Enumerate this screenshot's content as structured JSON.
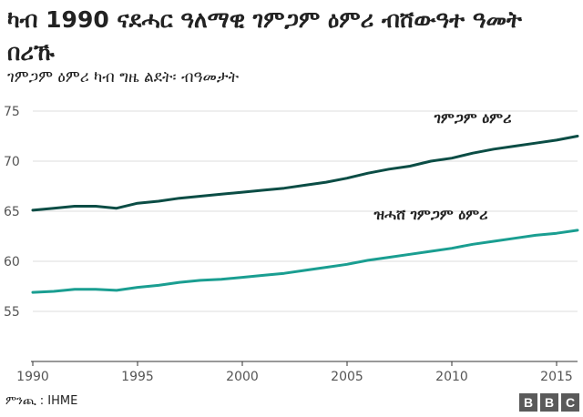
{
  "chart_data": {
    "type": "line",
    "title": "ካብ 1990 ናደሓር ዓለማዊ ገምጋም ዕምሪ ብሸውዓተ ዓመት በሪኹ",
    "subtitle": "ገምጋም ዕምሪ ካብ ግዜ ልደት፡ ብዓመታት",
    "x": [
      1990,
      1991,
      1992,
      1993,
      1994,
      1995,
      1996,
      1997,
      1998,
      1999,
      2000,
      2001,
      2002,
      2003,
      2004,
      2005,
      2006,
      2007,
      2008,
      2009,
      2010,
      2011,
      2012,
      2013,
      2014,
      2015,
      2016
    ],
    "xticks": [
      1990,
      1995,
      2000,
      2005,
      2010,
      2015
    ],
    "yticks": [
      55,
      60,
      65,
      70,
      75
    ],
    "xlim": [
      1990,
      2016
    ],
    "ylim": [
      50,
      75
    ],
    "grid": true,
    "series": [
      {
        "name": "ገምጋም ዕምሪ",
        "color": "#0b4d45",
        "values": [
          65.1,
          65.3,
          65.5,
          65.5,
          65.3,
          65.8,
          66.0,
          66.3,
          66.5,
          66.7,
          66.9,
          67.1,
          67.3,
          67.6,
          67.9,
          68.3,
          68.8,
          69.2,
          69.5,
          70.0,
          70.3,
          70.8,
          71.2,
          71.5,
          71.8,
          72.1,
          72.5
        ],
        "label_year": 2011,
        "label_value": 73.8
      },
      {
        "name": "ዝሓሸ ገምጋም ዕምሪ",
        "color": "#1a9e91",
        "values": [
          56.9,
          57.0,
          57.2,
          57.2,
          57.1,
          57.4,
          57.6,
          57.9,
          58.1,
          58.2,
          58.4,
          58.6,
          58.8,
          59.1,
          59.4,
          59.7,
          60.1,
          60.4,
          60.7,
          61.0,
          61.3,
          61.7,
          62.0,
          62.3,
          62.6,
          62.8,
          63.1
        ],
        "label_year": 2009,
        "label_value": 64.2
      }
    ]
  },
  "source_text": "ምንጪ : IHME",
  "logo_letters": [
    "B",
    "B",
    "C"
  ]
}
